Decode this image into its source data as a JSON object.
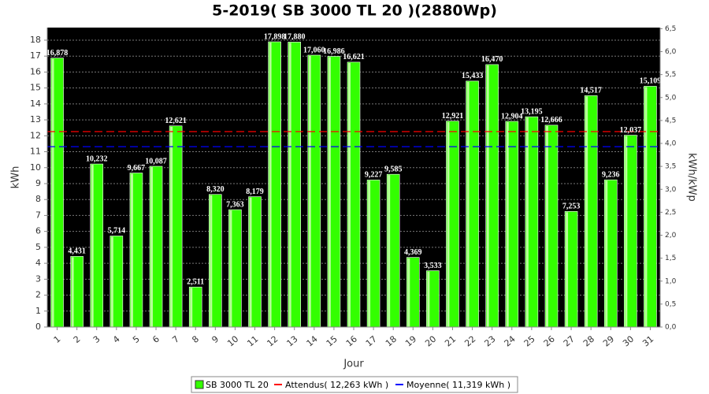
{
  "chart_data": {
    "type": "bar",
    "title": "5-2019( SB 3000 TL 20 )(2880Wp)",
    "x_label": "Jour",
    "y_label": "kWh",
    "y2_label": "kWh/kWp",
    "categories": [
      "1",
      "2",
      "3",
      "4",
      "5",
      "6",
      "7",
      "8",
      "9",
      "10",
      "11",
      "12",
      "13",
      "14",
      "15",
      "16",
      "17",
      "18",
      "19",
      "20",
      "21",
      "22",
      "23",
      "24",
      "25",
      "26",
      "27",
      "28",
      "29",
      "30",
      "31"
    ],
    "series": [
      {
        "name": "SB 3000 TL 20",
        "color": "#33ff00",
        "values": [
          16.878,
          4.431,
          10.232,
          5.714,
          9.667,
          10.087,
          12.621,
          2.511,
          8.32,
          7.363,
          8.179,
          17.898,
          17.88,
          17.06,
          16.986,
          16.621,
          9.227,
          9.585,
          4.369,
          3.533,
          12.921,
          15.433,
          16.47,
          12.904,
          13.195,
          12.666,
          7.253,
          14.517,
          9.236,
          12.037,
          15.109
        ],
        "value_labels": [
          "16,878",
          "4,431",
          "10,232",
          "5,714",
          "9,667",
          "10,087",
          "12,621",
          "2,511",
          "8,320",
          "7,363",
          "8,179",
          "17,898",
          "17,880",
          "17,060",
          "16,986",
          "16,621",
          "9,227",
          "9,585",
          "4,369",
          "3,533",
          "12,921",
          "15,433",
          "16,470",
          "12,904",
          "13,195",
          "12,666",
          "7,253",
          "14,517",
          "9,236",
          "12,037",
          "15,109"
        ]
      }
    ],
    "reference_lines": [
      {
        "name": "Attendus( 12,263 kWh )",
        "color": "#ff0000",
        "value": 12.263
      },
      {
        "name": "Moyenne( 11,319 kWh )",
        "color": "#0000ff",
        "value": 11.319
      }
    ],
    "ylim": [
      0,
      18.79
    ],
    "yticks": [
      0,
      1,
      2,
      3,
      4,
      5,
      6,
      7,
      8,
      9,
      10,
      11,
      12,
      13,
      14,
      15,
      16,
      17,
      18
    ],
    "y2lim": [
      0,
      6.524
    ],
    "y2ticks": [
      {
        "value": 0,
        "label": "0,0"
      },
      {
        "value": 0.5,
        "label": "0,5"
      },
      {
        "value": 1,
        "label": "1,0"
      },
      {
        "value": 1.5,
        "label": "1,5"
      },
      {
        "value": 2,
        "label": "2,0"
      },
      {
        "value": 2.5,
        "label": "2,5"
      },
      {
        "value": 3,
        "label": "3,0"
      },
      {
        "value": 3.5,
        "label": "3,5"
      },
      {
        "value": 4,
        "label": "4,0"
      },
      {
        "value": 4.5,
        "label": "4,5"
      },
      {
        "value": 5,
        "label": "5,0"
      },
      {
        "value": 5.5,
        "label": "5,5"
      },
      {
        "value": 6,
        "label": "6,0"
      },
      {
        "value": 6.5,
        "label": "6,5"
      }
    ],
    "grid": true,
    "legend": "bottom"
  }
}
